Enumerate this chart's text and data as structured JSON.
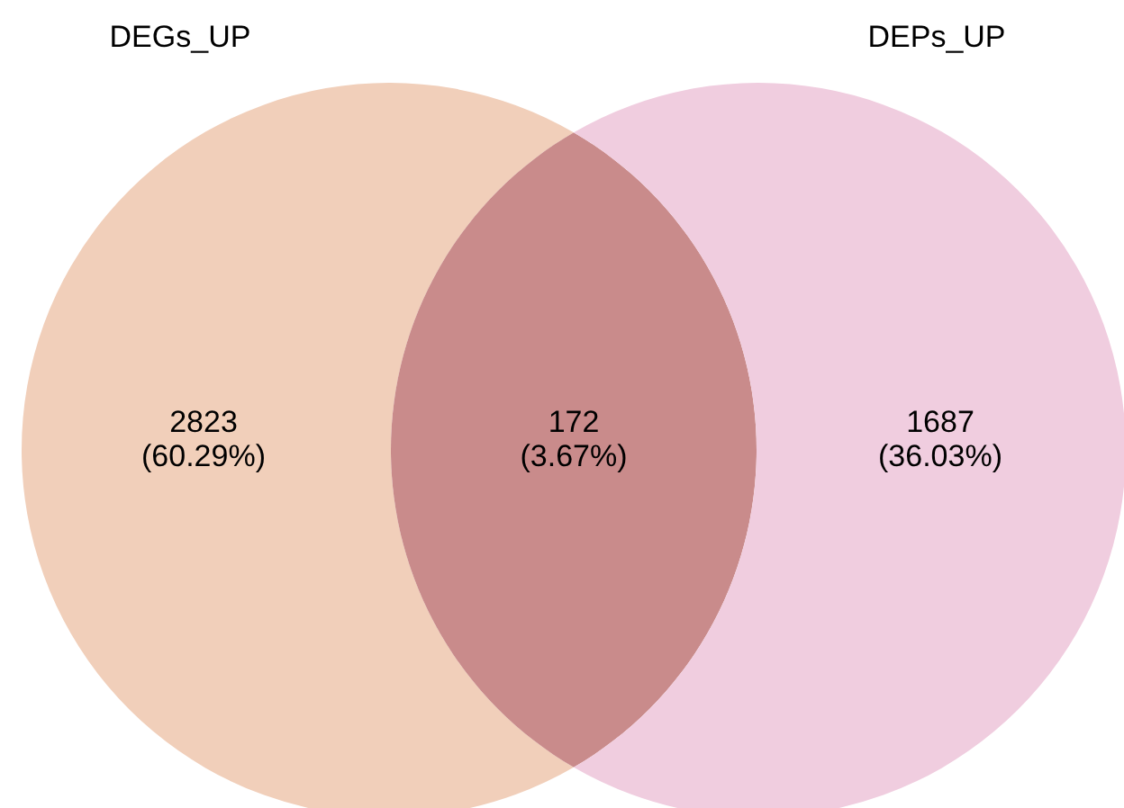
{
  "chart_data": {
    "type": "other",
    "annotations": [
      "DEGs_UP",
      "DEPs_UP"
    ],
    "categories": [
      null,
      null,
      null
    ],
    "values": [
      2823,
      172,
      1687
    ],
    "value_labels": [
      "2823\n(60.29%)",
      "172\n(3.67%)",
      "1687\n(36.03%)"
    ],
    "colors": [
      "#f1cfba",
      "#c98b8b",
      "#f0cddf"
    ]
  }
}
